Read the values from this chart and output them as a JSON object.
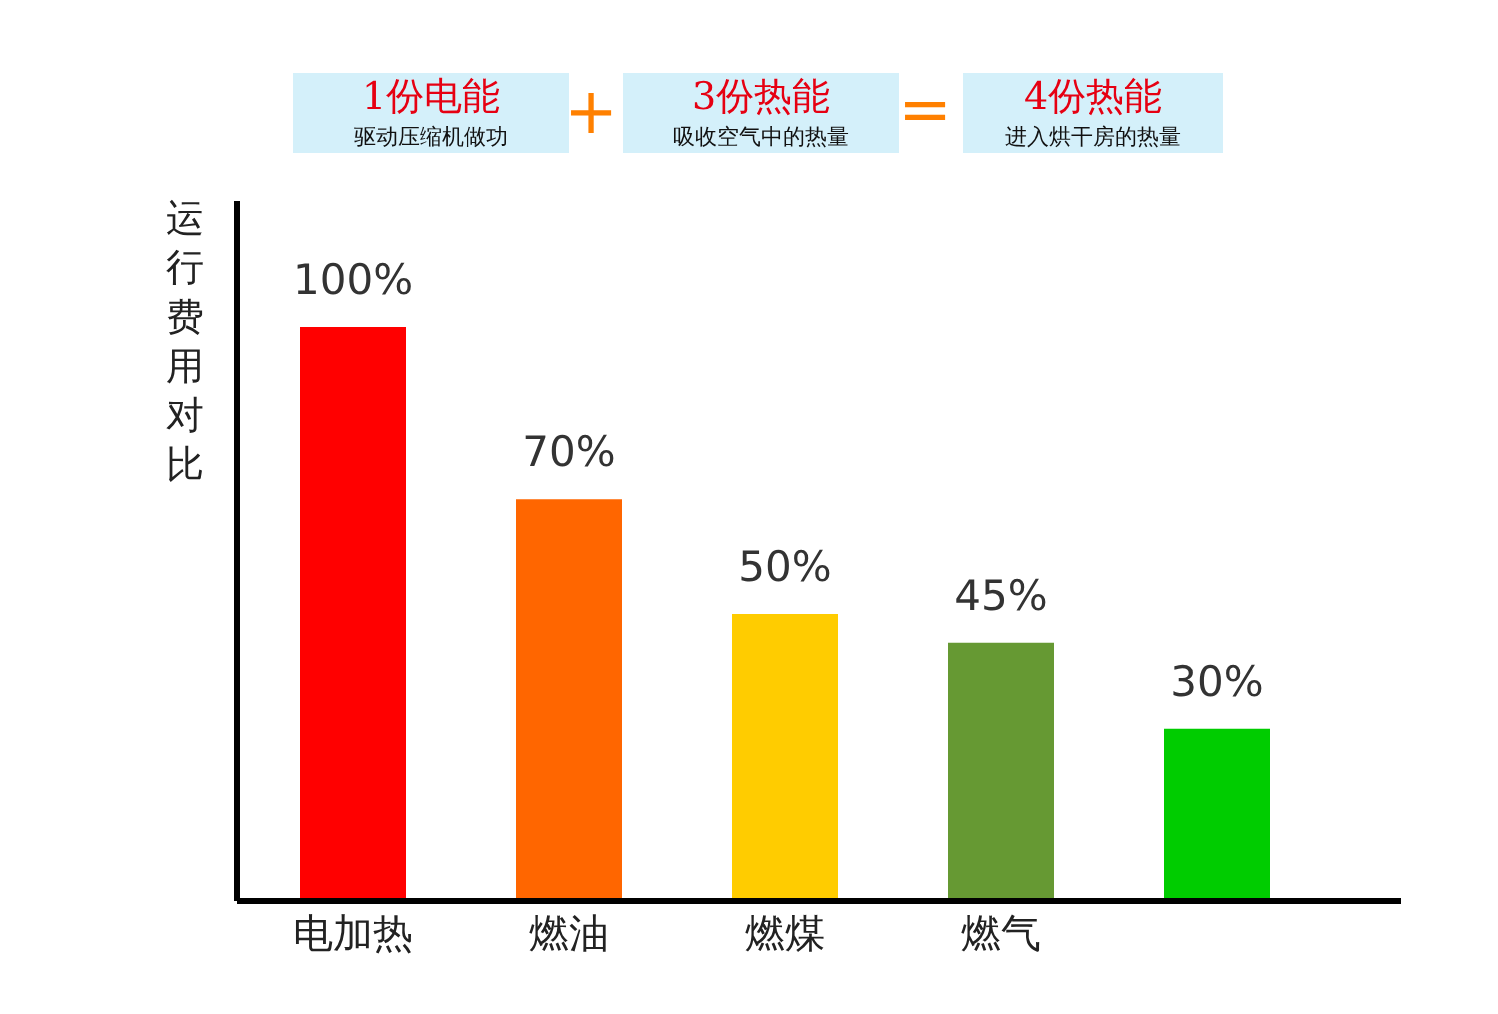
{
  "chart_data": {
    "type": "bar",
    "ylabel": "运行费用对比",
    "categories": [
      "电加热",
      "燃油",
      "燃煤",
      "燃气",
      null
    ],
    "values": [
      100,
      70,
      50,
      45,
      30
    ],
    "colors": [
      "#ff0000",
      "#ff6600",
      "#ffcc00",
      "#669933",
      "#00cc00"
    ],
    "value_labels": [
      "100%",
      "70%",
      "50%",
      "45%",
      "30%"
    ],
    "annotations": [
      "1份电能",
      "驱动压缩机做功",
      "+",
      "3份热能",
      "吸收空气中的热量",
      "=",
      "4份热能",
      "进入烘干房的热量"
    ]
  }
}
